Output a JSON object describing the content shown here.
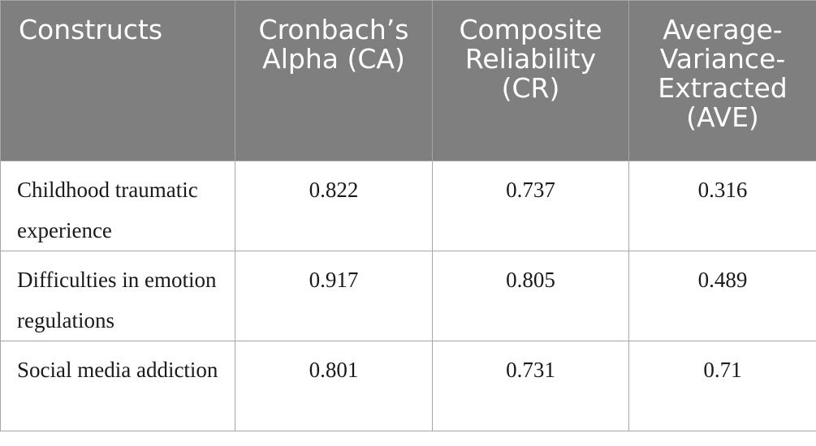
{
  "table": {
    "headers": [
      "Constructs",
      "Cronbach’s Alpha (CA)",
      "Composite Reliability (CR)",
      "Average-Variance-Extracted (AVE)"
    ],
    "rows": [
      {
        "construct": "Childhood traumatic experience",
        "ca": "0.822",
        "cr": "0.737",
        "ave": "0.316"
      },
      {
        "construct": "Difficulties in emotion regulations",
        "ca": "0.917",
        "cr": "0.805",
        "ave": "0.489"
      },
      {
        "construct": "Social media addiction",
        "ca": "0.801",
        "cr": "0.731",
        "ave": "0.71"
      }
    ]
  },
  "colors": {
    "header_bg": "#7f7f7f",
    "header_text": "#ffffff",
    "border": "#a6a6a6",
    "body_text": "#1a1a1a"
  }
}
